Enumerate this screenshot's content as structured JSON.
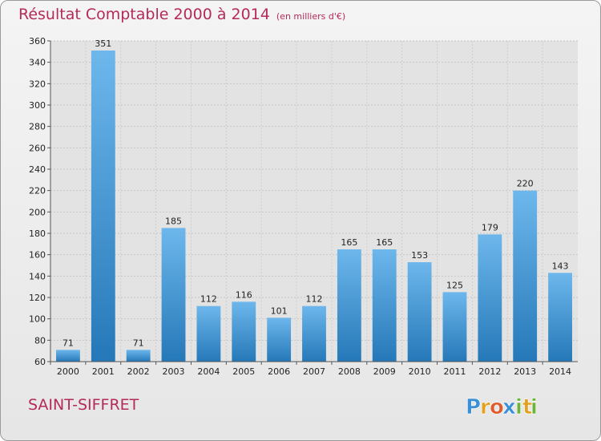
{
  "chart_data": {
    "type": "bar",
    "title": "Résultat Comptable 2000 à 2014",
    "subtitle": "(en milliers d'€)",
    "categories": [
      "2000",
      "2001",
      "2002",
      "2003",
      "2004",
      "2005",
      "2006",
      "2007",
      "2008",
      "2009",
      "2010",
      "2011",
      "2012",
      "2013",
      "2014"
    ],
    "values": [
      71,
      351,
      71,
      185,
      112,
      116,
      101,
      112,
      165,
      165,
      153,
      125,
      179,
      220,
      143
    ],
    "ylim": [
      60,
      360
    ],
    "yticks": [
      60,
      80,
      100,
      120,
      140,
      160,
      180,
      200,
      220,
      240,
      260,
      280,
      300,
      320,
      340,
      360
    ],
    "grid": true,
    "bar_color_top": "#6db7ec",
    "bar_color_bottom": "#2578b8"
  },
  "location": "SAINT-SIFFRET",
  "brand": {
    "name": "Proxiti",
    "letters": [
      "P",
      "r",
      "o",
      "x",
      "i",
      "t",
      "i"
    ],
    "colors": [
      "#3a8fd6",
      "#e2a21f",
      "#e05a2b",
      "#3a8fd6",
      "#6bb33a",
      "#e2a21f",
      "#6bb33a"
    ]
  }
}
